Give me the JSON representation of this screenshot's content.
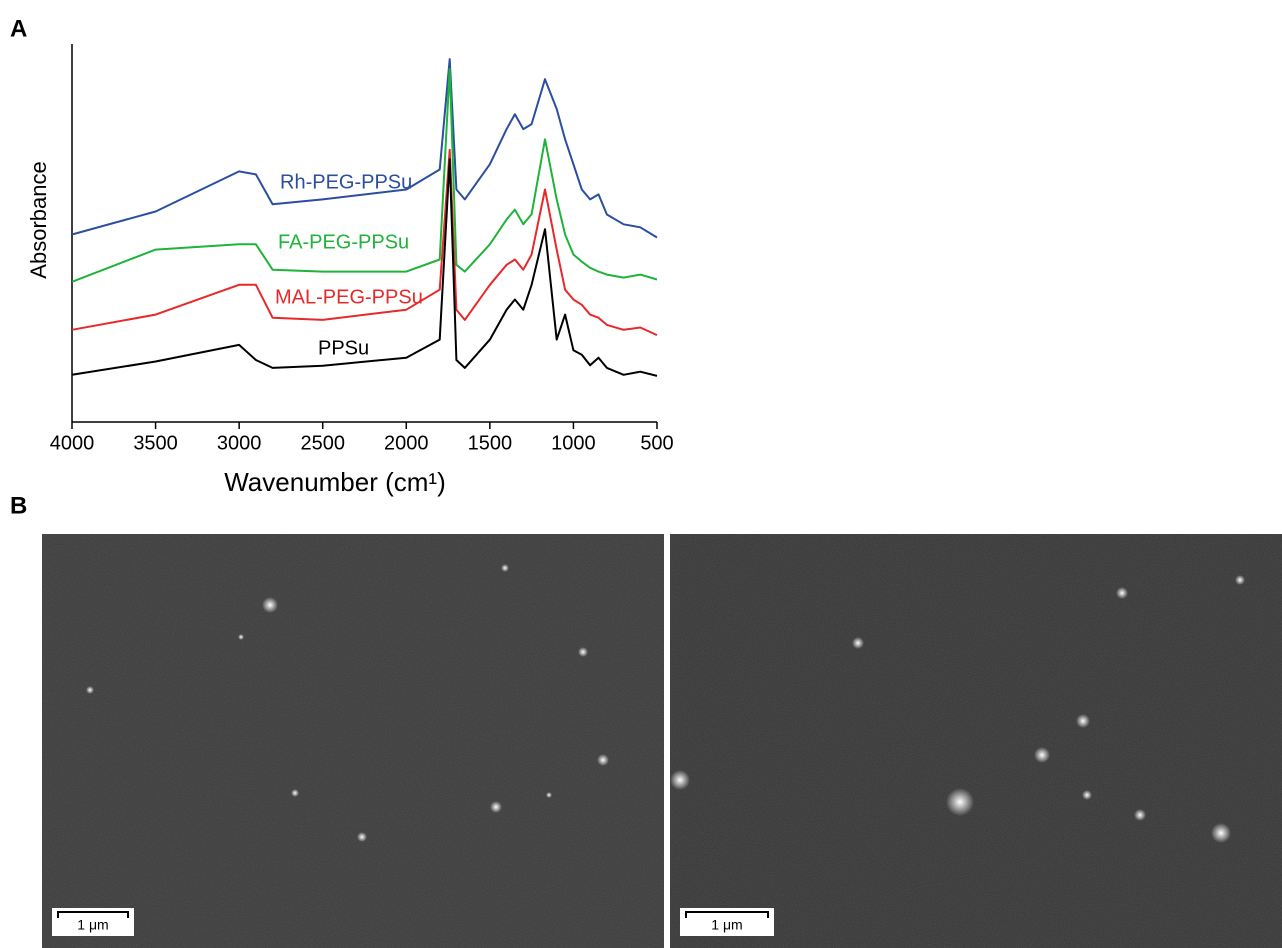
{
  "panel_labels": [
    "A",
    "B"
  ],
  "chart_data": {
    "type": "line",
    "ylabel": "Absorbance",
    "xlabel": "Wavenumber (cm¹)",
    "x": [
      4000,
      3500,
      3000,
      2900,
      2800,
      2500,
      2000,
      1800,
      1740,
      1700,
      1650,
      1500,
      1400,
      1350,
      1300,
      1250,
      1170,
      1100,
      1050,
      1000,
      950,
      900,
      850,
      800,
      700,
      600,
      500
    ],
    "xlim": [
      4000,
      500
    ],
    "xticks": [
      4000,
      3500,
      3000,
      2500,
      2000,
      1500,
      1000,
      500
    ],
    "ylim": [
      0,
      100
    ],
    "series": [
      {
        "name": "Rh-PEG-PPSu",
        "color": "#2b4ea0",
        "values": [
          49.6,
          55.7,
          66.3,
          65.5,
          57.6,
          58.9,
          61.5,
          66.8,
          96,
          61.5,
          58.9,
          68.2,
          77.5,
          81.4,
          77.5,
          78.8,
          90.7,
          82.8,
          74.8,
          68.2,
          61.5,
          58.9,
          60.2,
          54.9,
          52.3,
          51.5,
          48.8
        ]
      },
      {
        "name": "FA-PEG-PPSu",
        "color": "#1fb33a",
        "values": [
          37.1,
          45.6,
          47,
          47,
          40.3,
          39.8,
          39.8,
          43,
          93.4,
          41.6,
          39.8,
          47,
          53.6,
          56.2,
          52.3,
          55,
          74.8,
          58.9,
          49.6,
          44.3,
          42.4,
          40.8,
          39.8,
          39,
          38.2,
          39,
          37.7
        ]
      },
      {
        "name": "MAL-PEG-PPSu",
        "color": "#e8282a",
        "values": [
          24.4,
          28.4,
          36.3,
          36.3,
          27.6,
          27,
          29.7,
          35,
          72,
          29.7,
          27,
          36.3,
          41.6,
          43,
          40.3,
          44.3,
          61.5,
          45.6,
          35,
          32.4,
          31,
          28.4,
          27.6,
          25.7,
          24.4,
          25,
          23
        ]
      },
      {
        "name": "PPSu",
        "color": "#000000",
        "values": [
          12.5,
          16,
          20.4,
          16.4,
          14.3,
          14.9,
          17,
          21.8,
          69.5,
          16.4,
          14.3,
          21.8,
          29.7,
          32.4,
          29.7,
          36.3,
          51,
          21.8,
          28.4,
          19,
          17.8,
          15,
          17,
          14.3,
          12.5,
          13.3,
          12.2
        ]
      }
    ]
  },
  "sem_images": [
    {
      "scale_bar": "1 μm"
    },
    {
      "scale_bar": "1 μm"
    }
  ]
}
